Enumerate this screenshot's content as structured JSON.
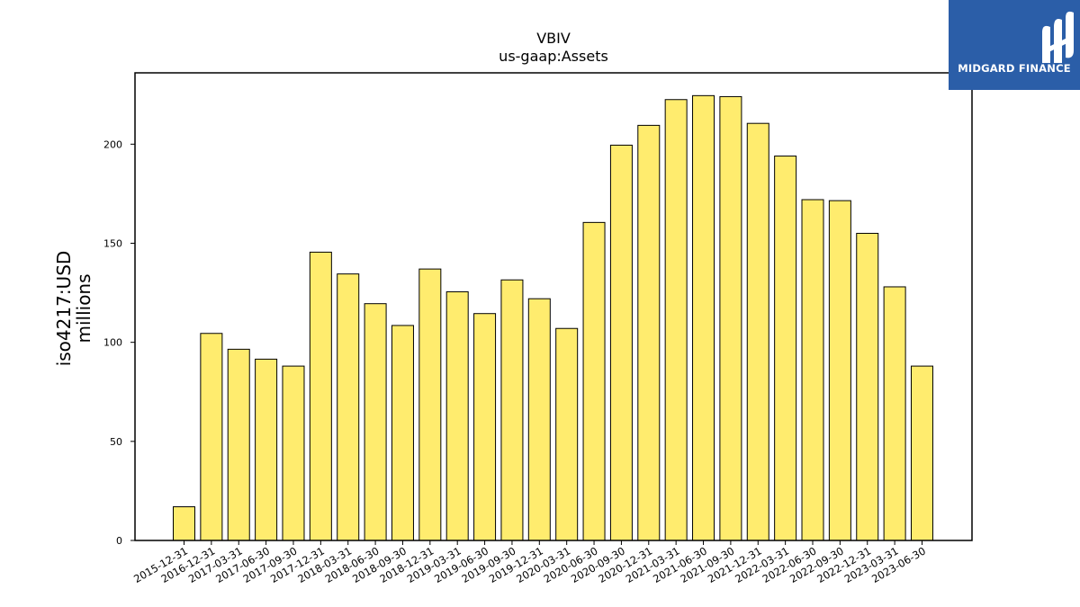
{
  "chart_data": {
    "type": "bar",
    "title": "VBIV",
    "subtitle": "us-gaap:Assets",
    "ylabel": "iso4217:USD",
    "ylabel_unit": "millions",
    "ylim": [
      0,
      236
    ],
    "yticks": [
      0,
      50,
      100,
      150,
      200
    ],
    "bar_color": "#ffec6e",
    "bar_edge_color": "#000000",
    "categories": [
      "2015-12-31",
      "2016-12-31",
      "2017-03-31",
      "2017-06-30",
      "2017-09-30",
      "2017-12-31",
      "2018-03-31",
      "2018-06-30",
      "2018-09-30",
      "2018-12-31",
      "2019-03-31",
      "2019-06-30",
      "2019-09-30",
      "2019-12-31",
      "2020-03-31",
      "2020-06-30",
      "2020-09-30",
      "2020-12-31",
      "2021-03-31",
      "2021-06-30",
      "2021-09-30",
      "2021-12-31",
      "2022-03-31",
      "2022-06-30",
      "2022-09-30",
      "2022-12-31",
      "2023-03-31",
      "2023-06-30"
    ],
    "values": [
      17,
      104.5,
      96.5,
      91.5,
      88,
      145.5,
      134.5,
      119.5,
      108.5,
      137,
      125.5,
      114.5,
      131.5,
      122,
      107,
      160.5,
      199.5,
      209.5,
      222.5,
      224.5,
      224,
      210.5,
      194,
      172,
      171.5,
      155,
      128,
      88
    ],
    "grid": false,
    "legend": "none"
  },
  "logo": {
    "text": "MIDGARD FINANCE",
    "color": "#2b5ea8"
  }
}
